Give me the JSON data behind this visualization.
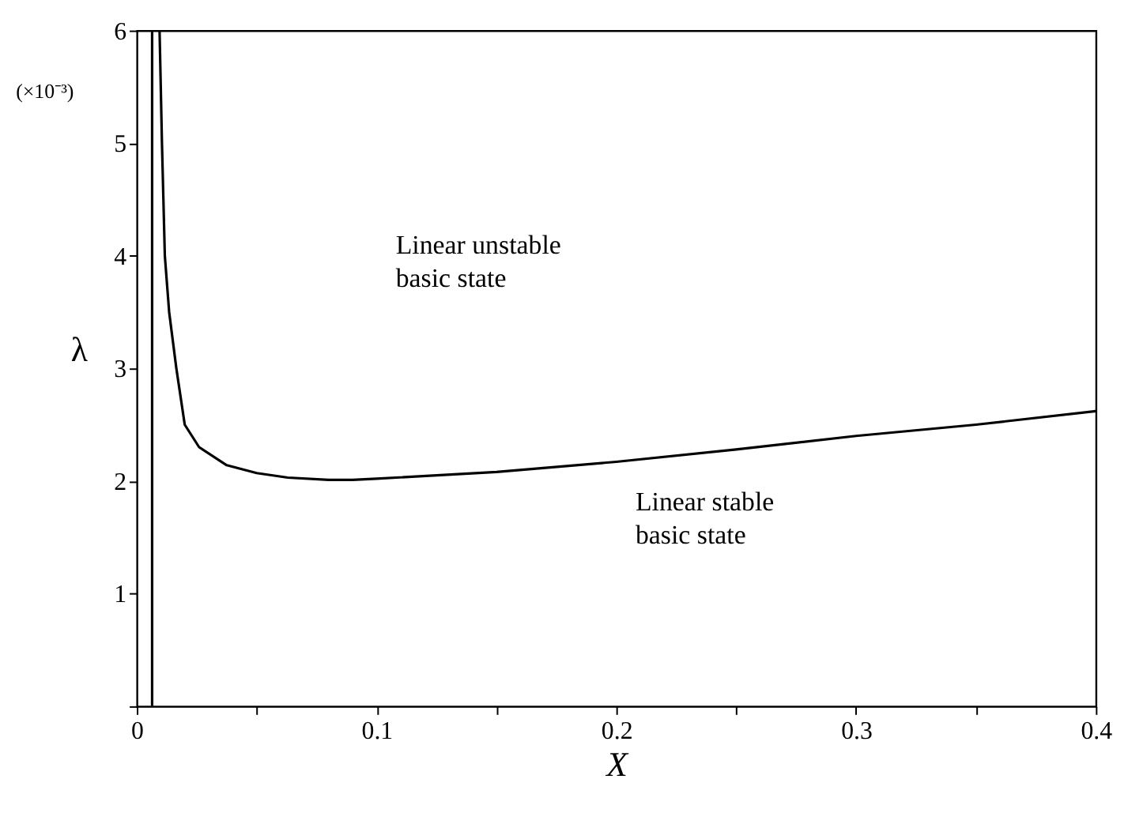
{
  "chart_data": {
    "type": "line",
    "xlabel": "X",
    "ylabel": "λ",
    "annotations": [
      "(×10⁻³)",
      "Linear unstable\nbasic state",
      "Linear stable\nbasic state"
    ],
    "series": [
      {
        "color": "#000000",
        "x": [
          0.0095,
          0.0105,
          0.0117,
          0.0135,
          0.0165,
          0.02,
          0.026,
          0.0375,
          0.05,
          0.063,
          0.08,
          0.09,
          0.1,
          0.15,
          0.2,
          0.25,
          0.3,
          0.35,
          0.4
        ],
        "values": [
          6,
          5,
          4,
          3.5,
          3,
          2.5,
          2.3,
          2.14,
          2.07,
          2.03,
          2.01,
          2.01,
          2.02,
          2.08,
          2.17,
          2.28,
          2.4,
          2.5,
          2.62
        ]
      },
      {
        "color": "#000000",
        "x": [
          0.0064,
          0.0064
        ],
        "values": [
          0,
          6
        ]
      }
    ],
    "xlim": [
      0,
      0.4
    ],
    "ylim": [
      0,
      6
    ],
    "xticks": [
      0,
      {
        "value": 0.05,
        "label": null
      },
      0.1,
      {
        "value": 0.15,
        "label": null
      },
      0.2,
      {
        "value": 0.25,
        "label": null
      },
      0.3,
      {
        "value": 0.35,
        "label": null
      },
      0.4
    ],
    "yticks": [
      {
        "value": 0,
        "label": null
      },
      1,
      2,
      3,
      4,
      5,
      6
    ],
    "grid": false,
    "marker": "none",
    "line_style": "solid"
  }
}
